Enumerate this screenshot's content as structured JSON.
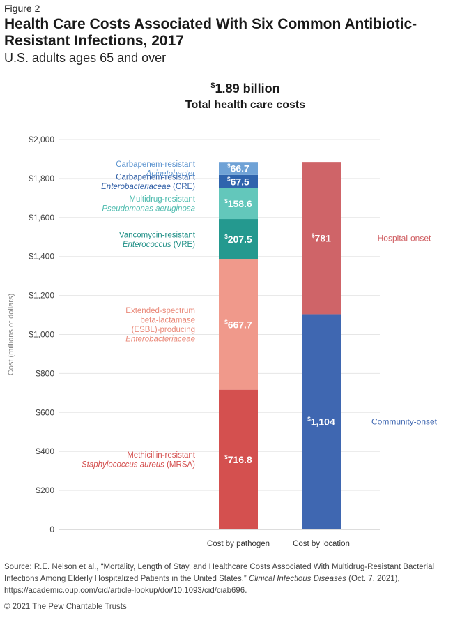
{
  "figure_label": "Figure 2",
  "title": "Health Care Costs Associated With Six Common Antibiotic-Resistant Infections, 2017",
  "subtitle": "U.S. adults ages 65 and over",
  "total": {
    "currency": "$",
    "value": "1.89 billion",
    "label": "Total health care costs"
  },
  "chart_data": {
    "type": "bar",
    "stacked": true,
    "ylabel": "Cost (millions of dollars)",
    "ylim": [
      0,
      2000
    ],
    "yticks": [
      "0",
      "$200",
      "$400",
      "$600",
      "$800",
      "$1,000",
      "$1,200",
      "$1,400",
      "$1,600",
      "$1,800",
      "$2,000"
    ],
    "grid": true,
    "categories": [
      "Cost by pathogen",
      "Cost by location"
    ],
    "bars": [
      {
        "category": "Cost by pathogen",
        "segments": [
          {
            "value": 716.8,
            "label": "716.8",
            "name_lines": [
              {
                "text": "Methicillin-resistant",
                "italic": false
              },
              {
                "parts": [
                  {
                    "text": "Staphylococcus aureus",
                    "italic": true
                  },
                  {
                    "text": " (MRSA)",
                    "italic": false
                  }
                ]
              }
            ],
            "color": "#d4504f",
            "text_color": "#d4504f"
          },
          {
            "value": 667.7,
            "label": "667.7",
            "name_lines": [
              {
                "text": "Extended-spectrum",
                "italic": false
              },
              {
                "text": "beta-lactamase",
                "italic": false
              },
              {
                "text": "(ESBL)-producing",
                "italic": false
              },
              {
                "text": "Enterobacteriaceae",
                "italic": true
              }
            ],
            "color": "#f0998b",
            "text_color": "#ea8a7a"
          },
          {
            "value": 207.5,
            "label": "207.5",
            "name_lines": [
              {
                "text": "Vancomycin-resistant",
                "italic": false
              },
              {
                "parts": [
                  {
                    "text": "Enterococcus",
                    "italic": true
                  },
                  {
                    "text": " (VRE)",
                    "italic": false
                  }
                ]
              }
            ],
            "color": "#24998f",
            "text_color": "#1f8f86"
          },
          {
            "value": 158.6,
            "label": "158.6",
            "name_lines": [
              {
                "text": "Multidrug-resistant",
                "italic": false
              },
              {
                "text": "Pseudomonas aeruginosa",
                "italic": true
              }
            ],
            "color": "#63c7bb",
            "text_color": "#4dbbae"
          },
          {
            "value": 67.5,
            "label": "67.5",
            "name_lines": [
              {
                "text": "Carbapenem-resistant",
                "italic": false
              },
              {
                "parts": [
                  {
                    "text": "Enterobacteriaceae",
                    "italic": true
                  },
                  {
                    "text": " (CRE)",
                    "italic": false
                  }
                ]
              }
            ],
            "color": "#2f64ad",
            "text_color": "#2f5ea6"
          },
          {
            "value": 66.7,
            "label": "66.7",
            "name_lines": [
              {
                "text": "Carbapenem-resistant",
                "italic": false
              },
              {
                "text": "Acinetobacter",
                "italic": true
              }
            ],
            "color": "#6fa2d6",
            "text_color": "#5b93cf"
          }
        ]
      },
      {
        "category": "Cost by location",
        "segments": [
          {
            "value": 1104,
            "label": "1,104",
            "name": "Community-onset",
            "color": "#3f67b1",
            "text_color": "#3f67b1"
          },
          {
            "value": 781,
            "label": "781",
            "name": "Hospital-onset",
            "color": "#cf6468",
            "text_color": "#cf5c60"
          }
        ]
      }
    ]
  },
  "source": {
    "prefix": "Source: R.E. Nelson et al., “Mortality, Length of Stay, and Healthcare Costs Associated With Multidrug-Resistant Bacterial Infections Among Elderly Hospitalized Patients in the United States,” ",
    "journal": "Clinical Infectious Diseases",
    "suffix": " (Oct. 7, 2021), https://academic.oup.com/cid/article-lookup/doi/10.1093/cid/ciab696."
  },
  "copyright": "© 2021 The Pew Charitable Trusts"
}
